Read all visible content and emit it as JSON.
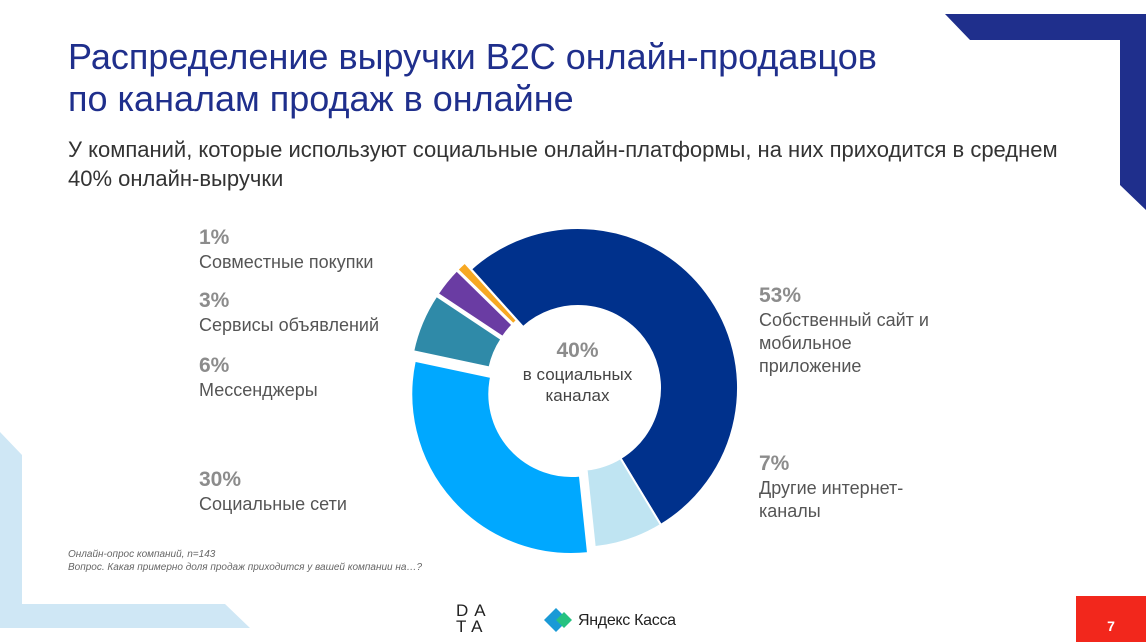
{
  "title": {
    "line1": "Распределение выручки B2C онлайн-продавцов",
    "line2": "по каналам продаж в онлайне"
  },
  "subtitle": "У компаний, которые используют социальные онлайн-платформы, на них приходится в среднем 40% онлайн-выручки",
  "center": {
    "pct": "40%",
    "text": "в социальных каналах"
  },
  "labels": {
    "group_buying": {
      "pct": "1%",
      "name": "Совместные покупки"
    },
    "classifieds": {
      "pct": "3%",
      "name": "Сервисы объявлений"
    },
    "messengers": {
      "pct": "6%",
      "name": "Мессенджеры"
    },
    "social": {
      "pct": "30%",
      "name": "Социальные сети"
    },
    "own_site": {
      "pct": "53%",
      "name": "Собственный сайт и мобильное приложение"
    },
    "other": {
      "pct": "7%",
      "name": "Другие интернет-каналы"
    }
  },
  "footnote": {
    "line1": "Онлайн-опрос компаний, n=143",
    "line2": "Вопрос. Какая примерно доля продаж приходится у вашей компании на…?"
  },
  "logos": {
    "data_line1": "DA",
    "data_line2": "TA",
    "kassa": "Яндекс Касса"
  },
  "page_number": "7",
  "chart_data": {
    "type": "pie",
    "donut": true,
    "title": "",
    "slices": [
      {
        "name": "Собственный сайт и мобильное приложение",
        "value": 53,
        "color": "#00318c"
      },
      {
        "name": "Другие интернет-каналы",
        "value": 7,
        "color": "#bfe4f2"
      },
      {
        "name": "Социальные сети",
        "value": 30,
        "color": "#00a8ff"
      },
      {
        "name": "Мессенджеры",
        "value": 6,
        "color": "#2f8aa8"
      },
      {
        "name": "Сервисы объявлений",
        "value": 3,
        "color": "#6a3ca3"
      },
      {
        "name": "Совместные покупки",
        "value": 1,
        "color": "#f7a823"
      }
    ],
    "exploded": [
      "Социальные сети",
      "Мессенджеры",
      "Сервисы объявлений",
      "Совместные покупки"
    ]
  },
  "colors": {
    "brand_blue": "#1f2f8c",
    "accent_red": "#f2271c",
    "light_blue": "#cfe7f5"
  }
}
